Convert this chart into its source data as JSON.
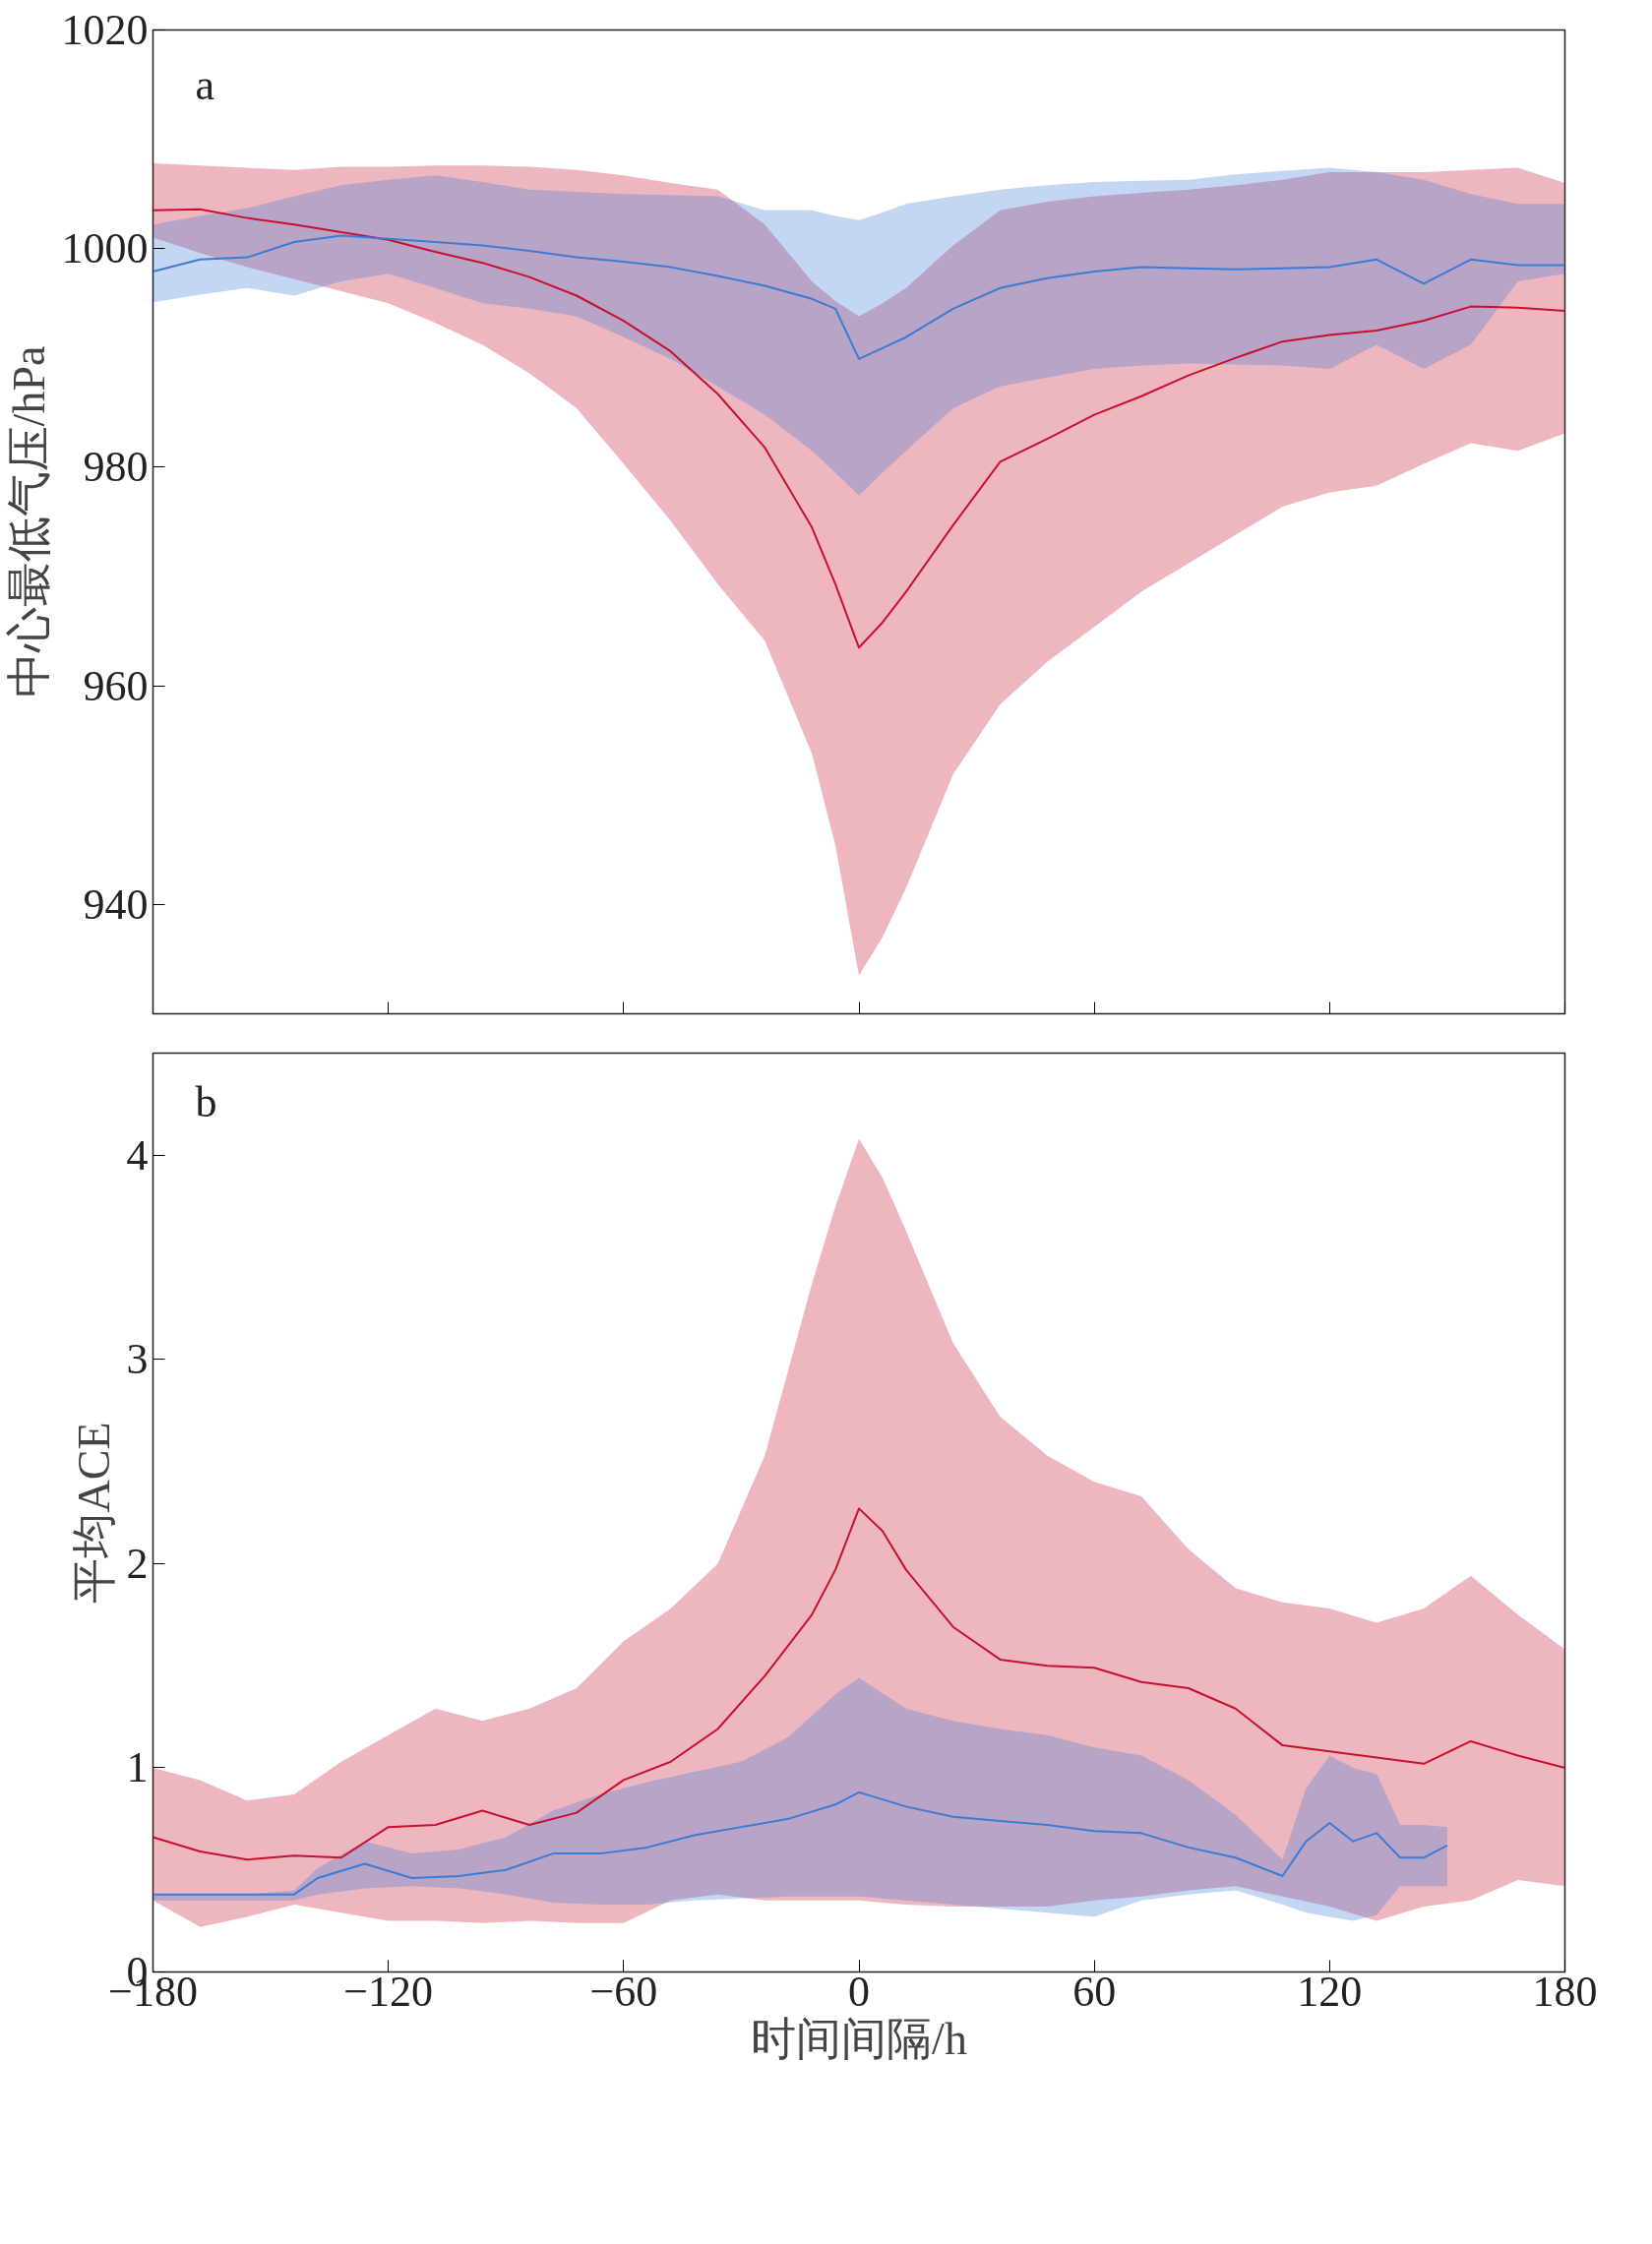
{
  "chart_data": [
    {
      "type": "line",
      "ylabel": "中心最低气压/hPa",
      "annotations": [
        "a"
      ],
      "tick_labels": "y",
      "grid": false,
      "x": [
        -180,
        -168,
        -156,
        -144,
        -132,
        -120,
        -108,
        -96,
        -84,
        -72,
        -60,
        -48,
        -36,
        -24,
        -12,
        -6,
        0,
        6,
        12,
        24,
        36,
        48,
        60,
        72,
        84,
        96,
        108,
        120,
        132,
        144,
        156,
        168,
        180
      ],
      "xlim": [
        -180,
        180
      ],
      "xticks": [
        -180,
        -120,
        -60,
        0,
        60,
        120,
        180
      ],
      "ylim": [
        930,
        1020
      ],
      "yticks": [
        940,
        960,
        980,
        1000,
        1020
      ],
      "series": [
        {
          "color": "#c8102e",
          "values": [
            1003.5,
            1003.6,
            1002.8,
            1002.2,
            1001.5,
            1000.8,
            999.7,
            998.7,
            997.4,
            995.7,
            993.4,
            990.6,
            986.7,
            981.8,
            974.5,
            969.3,
            963.5,
            965.8,
            968.6,
            974.7,
            980.5,
            982.6,
            984.8,
            986.5,
            988.4,
            990,
            991.5,
            992.1,
            992.5,
            993.4,
            994.7,
            994.6,
            994.3
          ],
          "upper": [
            1007.8,
            1007.6,
            1007.4,
            1007.2,
            1007.5,
            1007.5,
            1007.6,
            1007.6,
            1007.5,
            1007.2,
            1006.7,
            1006,
            1005.4,
            1002.2,
            997,
            995.2,
            993.8,
            995,
            996.4,
            1000.3,
            1003.5,
            1004.3,
            1004.8,
            1005.1,
            1005.4,
            1005.8,
            1006.3,
            1007,
            1007,
            1007,
            1007.2,
            1007.4,
            1006
          ],
          "lower": [
            1001,
            999.6,
            998.3,
            997.2,
            996.1,
            995,
            993.2,
            991.2,
            988.6,
            985.4,
            980.3,
            975.1,
            969.3,
            964.1,
            953.8,
            945.4,
            933.5,
            937,
            941.5,
            951.9,
            958.3,
            962.2,
            965.4,
            968.6,
            971.2,
            973.8,
            976.4,
            977.7,
            978.3,
            980.3,
            982.2,
            981.5,
            983.1
          ]
        },
        {
          "color": "#3a7bd5",
          "values": [
            997.9,
            999,
            999.2,
            1000.6,
            1001.2,
            1000.9,
            1000.6,
            1000.3,
            999.8,
            999.2,
            998.8,
            998.3,
            997.5,
            996.6,
            995.4,
            994.5,
            989.9,
            990.9,
            991.9,
            994.5,
            996.4,
            997.3,
            997.9,
            998.3,
            998.2,
            998.1,
            998.2,
            998.3,
            999,
            996.8,
            999,
            998.5,
            998.5
          ],
          "upper": [
            1002.2,
            1003,
            1003.7,
            1004.8,
            1005.8,
            1006.3,
            1006.7,
            1006.1,
            1005.4,
            1005.2,
            1005,
            1004.9,
            1004.8,
            1003.5,
            1003.5,
            1003,
            1002.6,
            1003.3,
            1004.1,
            1004.8,
            1005.4,
            1005.8,
            1006.1,
            1006.2,
            1006.3,
            1006.8,
            1007.1,
            1007.4,
            1007,
            1006.3,
            1005,
            1004.1,
            1004.1
          ],
          "lower": [
            995.1,
            995.8,
            996.4,
            995.7,
            997,
            997.7,
            996.4,
            995,
            994.5,
            993.8,
            991.9,
            989.9,
            987.4,
            984.8,
            981.5,
            979.5,
            977.4,
            979.5,
            981.5,
            985.4,
            987.4,
            988.2,
            989,
            989.3,
            989.5,
            989.4,
            989.3,
            989,
            991.2,
            989,
            991.2,
            997,
            997.7
          ]
        }
      ]
    },
    {
      "type": "line",
      "xlabel": "时间间隔/h",
      "ylabel": "平均ACE",
      "annotations": [
        "b"
      ],
      "grid": false,
      "x": [
        -180,
        -168,
        -156,
        -144,
        -132,
        -120,
        -108,
        -96,
        -84,
        -72,
        -60,
        -48,
        -36,
        -24,
        -12,
        -6,
        0,
        6,
        12,
        24,
        36,
        48,
        60,
        72,
        84,
        96,
        108,
        120,
        132,
        144,
        156,
        168,
        180
      ],
      "xlim": [
        -180,
        180
      ],
      "xticks": [
        {
          "value": -180,
          "label": "−180"
        },
        {
          "value": -120,
          "label": "−120"
        },
        {
          "value": -60,
          "label": "−60"
        },
        0,
        60,
        120,
        180
      ],
      "ylim": [
        0,
        4.5
      ],
      "yticks": [
        0,
        1,
        2,
        3,
        4
      ],
      "series": [
        {
          "color": "#c8102e",
          "values": [
            0.66,
            0.59,
            0.55,
            0.57,
            0.56,
            0.71,
            0.72,
            0.79,
            0.72,
            0.78,
            0.94,
            1.03,
            1.19,
            1.45,
            1.75,
            1.97,
            2.27,
            2.16,
            1.97,
            1.69,
            1.53,
            1.5,
            1.49,
            1.42,
            1.39,
            1.29,
            1.11,
            1.08,
            1.05,
            1.02,
            1.13,
            1.06,
            1.0
          ],
          "upper": [
            1.0,
            0.94,
            0.84,
            0.87,
            1.03,
            1.16,
            1.29,
            1.23,
            1.29,
            1.39,
            1.62,
            1.78,
            2.0,
            2.53,
            3.37,
            3.75,
            4.08,
            3.89,
            3.63,
            3.08,
            2.72,
            2.53,
            2.4,
            2.33,
            2.07,
            1.88,
            1.81,
            1.78,
            1.71,
            1.78,
            1.94,
            1.75,
            1.58
          ],
          "lower": [
            0.35,
            0.22,
            0.27,
            0.33,
            0.29,
            0.25,
            0.25,
            0.24,
            0.25,
            0.24,
            0.24,
            0.35,
            0.38,
            0.35,
            0.35,
            0.35,
            0.35,
            0.34,
            0.33,
            0.32,
            0.32,
            0.32,
            0.35,
            0.37,
            0.4,
            0.42,
            0.37,
            0.32,
            0.25,
            0.32,
            0.35,
            0.45,
            0.42
          ]
        },
        {
          "color": "#3a7bd5",
          "x": [
            -180,
            -168,
            -156,
            -144,
            -138,
            -126,
            -114,
            -102,
            -90,
            -78,
            -66,
            -54,
            -42,
            -30,
            -18,
            -6,
            0,
            12,
            24,
            36,
            48,
            60,
            72,
            84,
            96,
            108,
            114,
            120,
            126,
            132,
            138,
            144,
            150
          ],
          "values": [
            0.38,
            0.38,
            0.38,
            0.38,
            0.46,
            0.53,
            0.46,
            0.47,
            0.5,
            0.58,
            0.58,
            0.61,
            0.67,
            0.71,
            0.75,
            0.82,
            0.88,
            0.81,
            0.76,
            0.74,
            0.72,
            0.69,
            0.68,
            0.61,
            0.56,
            0.47,
            0.64,
            0.73,
            0.64,
            0.68,
            0.56,
            0.56,
            0.62
          ],
          "upper": [
            0.38,
            0.38,
            0.38,
            0.4,
            0.51,
            0.64,
            0.58,
            0.6,
            0.66,
            0.79,
            0.87,
            0.93,
            0.98,
            1.03,
            1.15,
            1.36,
            1.44,
            1.29,
            1.23,
            1.19,
            1.16,
            1.1,
            1.06,
            0.94,
            0.77,
            0.55,
            0.9,
            1.06,
            1.0,
            0.97,
            0.72,
            0.72,
            0.71
          ],
          "lower": [
            0.35,
            0.35,
            0.35,
            0.35,
            0.38,
            0.41,
            0.42,
            0.41,
            0.38,
            0.34,
            0.33,
            0.33,
            0.35,
            0.36,
            0.37,
            0.37,
            0.37,
            0.35,
            0.33,
            0.31,
            0.29,
            0.27,
            0.35,
            0.38,
            0.4,
            0.33,
            0.29,
            0.27,
            0.25,
            0.28,
            0.42,
            0.42,
            0.42
          ]
        }
      ]
    }
  ]
}
